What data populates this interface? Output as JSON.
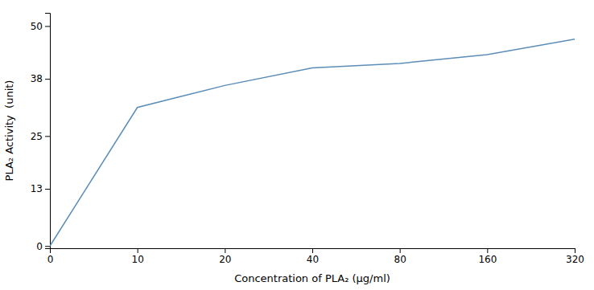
{
  "chart_data": {
    "type": "line",
    "x": [
      0,
      10,
      15,
      20,
      40,
      80,
      160,
      320
    ],
    "values": [
      0,
      31.5,
      34,
      36.5,
      40.5,
      41.5,
      43.5,
      47
    ],
    "xlim": [
      0,
      320
    ],
    "xticks": [
      0,
      10,
      20,
      40,
      80,
      160,
      320
    ],
    "ylim": [
      -0.5,
      53
    ],
    "yticks": [
      0,
      13,
      25,
      38,
      50
    ],
    "xlabel": "Concentration of PLA₂ (μg/ml)",
    "ylabel": "PLA₂ Activity  (unit)",
    "color": "#5b8db8",
    "grid": false
  }
}
